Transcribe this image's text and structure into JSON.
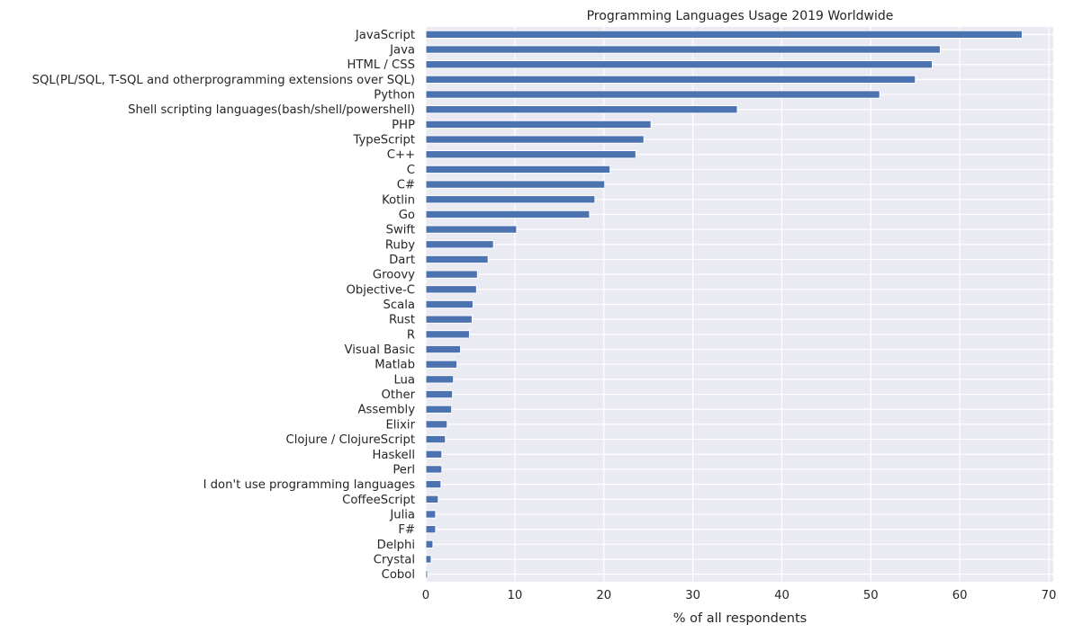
{
  "chart_data": {
    "type": "bar",
    "orientation": "horizontal",
    "title": "Programming Languages Usage 2019 Worldwide",
    "xlabel": "% of all respondents",
    "ylabel": "",
    "xlim": [
      0,
      70.5
    ],
    "xticks": [
      "0",
      "10",
      "20",
      "30",
      "40",
      "50",
      "60",
      "70"
    ],
    "grid": true,
    "bar_color": "#4c72b0",
    "background_color": "#eaeaf2",
    "categories": [
      "JavaScript",
      "Java",
      "HTML / CSS",
      "SQL(PL/SQL, T-SQL and otherprogramming extensions over SQL)",
      "Python",
      "Shell scripting languages(bash/shell/powershell)",
      "PHP",
      "TypeScript",
      "C++",
      "C",
      "C#",
      "Kotlin",
      "Go",
      "Swift",
      "Ruby",
      "Dart",
      "Groovy",
      "Objective-C",
      "Scala",
      "Rust",
      "R",
      "Visual Basic",
      "Matlab",
      "Lua",
      "Other",
      "Assembly",
      "Elixir",
      "Clojure / ClojureScript",
      "Haskell",
      "Perl",
      "I don't use programming languages",
      "CoffeeScript",
      "Julia",
      "F#",
      "Delphi",
      "Crystal",
      "Cobol"
    ],
    "values": [
      67.0,
      57.8,
      56.9,
      55.0,
      51.0,
      35.0,
      25.3,
      24.5,
      23.6,
      20.7,
      20.1,
      19.0,
      18.4,
      10.2,
      7.6,
      7.0,
      5.8,
      5.7,
      5.3,
      5.2,
      4.9,
      3.9,
      3.5,
      3.1,
      3.0,
      2.9,
      2.4,
      2.2,
      1.8,
      1.8,
      1.7,
      1.4,
      1.1,
      1.1,
      0.8,
      0.6,
      0.2
    ]
  }
}
